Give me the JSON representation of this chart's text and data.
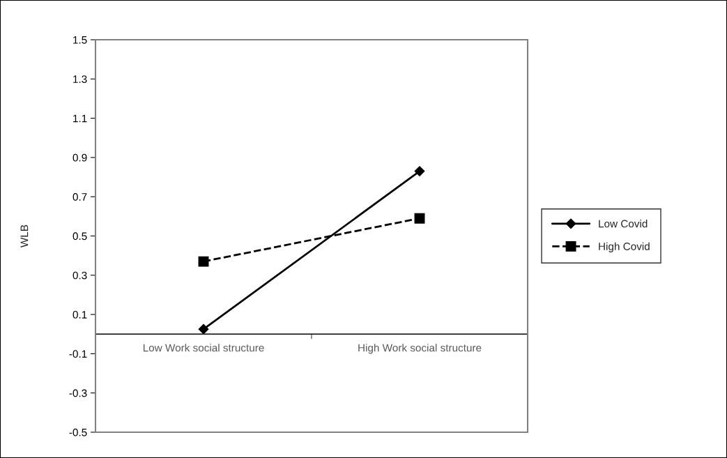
{
  "chart_data": {
    "type": "line",
    "ylabel": "WLB",
    "categories": [
      "Low Work social structure",
      "High Work social structure"
    ],
    "series": [
      {
        "name": "Low Covid",
        "color": "#000000",
        "values": [
          0.025,
          0.83
        ],
        "marker": "diamond",
        "line_style": "solid"
      },
      {
        "name": "High Covid",
        "color": "#000000",
        "values": [
          0.37,
          0.59
        ],
        "marker": "square",
        "line_style": "dashed"
      }
    ],
    "ylim": [
      -0.5,
      1.5
    ],
    "yticks": [
      {
        "value": -0.5,
        "label": "-0.5"
      },
      {
        "value": -0.3,
        "label": "-0.3"
      },
      {
        "value": -0.1,
        "label": "-0.1"
      },
      0.1,
      0.3,
      0.5,
      0.7,
      0.9,
      1.1,
      1.3,
      1.5
    ],
    "grid": false,
    "legend": "right"
  }
}
